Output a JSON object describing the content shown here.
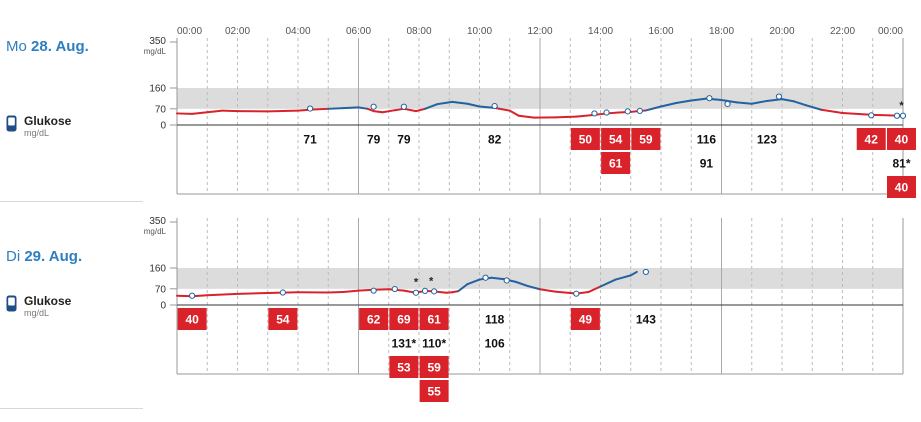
{
  "time_labels": [
    "00:00",
    "02:00",
    "04:00",
    "06:00",
    "08:00",
    "10:00",
    "12:00",
    "14:00",
    "16:00",
    "18:00",
    "20:00",
    "22:00",
    "00:00"
  ],
  "y_tick_labels": [
    "350",
    "160",
    "70",
    "0"
  ],
  "y_unit": "mg/dL",
  "legend": {
    "name": "Glukose",
    "unit": "mg/dL"
  },
  "colors": {
    "low": "#d9222a",
    "in_range": "#2362a0",
    "target_band": "#dcdcdc",
    "date": "#2d7fc1"
  },
  "icons": {
    "glucose": "glucose-meter-icon"
  },
  "days": [
    {
      "weekday": "Mo",
      "date": "28. Aug.",
      "asterisks": [
        {
          "t": 23.95,
          "v": 40
        }
      ],
      "readings": [
        {
          "t": 4.4,
          "row": 0,
          "label": "71",
          "v": 71,
          "low": false
        },
        {
          "t": 6.5,
          "row": 0,
          "label": "79",
          "v": 79,
          "low": false
        },
        {
          "t": 7.5,
          "row": 0,
          "label": "79",
          "v": 79,
          "low": false
        },
        {
          "t": 10.5,
          "row": 0,
          "label": "82",
          "v": 82,
          "low": false
        },
        {
          "t": 13.5,
          "row": 0,
          "label": "50",
          "v": 50,
          "low": true
        },
        {
          "t": 14.5,
          "row": 0,
          "label": "54",
          "v": 54,
          "low": true
        },
        {
          "t": 15.5,
          "row": 0,
          "label": "59",
          "v": 59,
          "low": true
        },
        {
          "t": 14.5,
          "row": 1,
          "label": "61",
          "v": 61,
          "low": true
        },
        {
          "t": 17.5,
          "row": 0,
          "label": "116",
          "v": 116,
          "low": false
        },
        {
          "t": 17.5,
          "row": 1,
          "label": "91",
          "v": 91,
          "low": false
        },
        {
          "t": 19.5,
          "row": 0,
          "label": "123",
          "v": 123,
          "low": false
        },
        {
          "t": 22.95,
          "row": 0,
          "label": "42",
          "v": 42,
          "low": true
        },
        {
          "t": 23.95,
          "row": 0,
          "label": "40",
          "v": 40,
          "low": true
        },
        {
          "t": 23.95,
          "row": 1,
          "label": "81*",
          "v": 81,
          "low": false
        },
        {
          "t": 23.95,
          "row": 2,
          "label": "40",
          "v": 40,
          "low": true
        }
      ],
      "curve": [
        [
          0,
          50
        ],
        [
          0.5,
          48
        ],
        [
          1,
          55
        ],
        [
          1.5,
          62
        ],
        [
          2,
          60
        ],
        [
          3,
          59
        ],
        [
          4,
          62
        ],
        [
          4.5,
          67
        ],
        [
          5,
          70
        ],
        [
          5.5,
          73
        ],
        [
          6,
          76
        ],
        [
          6.3,
          70
        ],
        [
          6.5,
          60
        ],
        [
          6.8,
          55
        ],
        [
          7.2,
          64
        ],
        [
          7.5,
          70
        ],
        [
          7.9,
          60
        ],
        [
          8.2,
          70
        ],
        [
          8.6,
          90
        ],
        [
          9.1,
          100
        ],
        [
          9.6,
          92
        ],
        [
          10,
          80
        ],
        [
          10.5,
          74
        ],
        [
          11,
          62
        ],
        [
          11.3,
          40
        ],
        [
          11.8,
          32
        ],
        [
          12.5,
          33
        ],
        [
          13.2,
          36
        ],
        [
          13.8,
          44
        ],
        [
          14.2,
          50
        ],
        [
          14.6,
          54
        ],
        [
          15,
          57
        ],
        [
          15.5,
          63
        ],
        [
          16,
          80
        ],
        [
          16.5,
          95
        ],
        [
          17,
          106
        ],
        [
          17.5,
          114
        ],
        [
          18,
          108
        ],
        [
          18.5,
          98
        ],
        [
          19,
          92
        ],
        [
          19.5,
          104
        ],
        [
          20,
          112
        ],
        [
          20.4,
          102
        ],
        [
          20.8,
          85
        ],
        [
          21.3,
          66
        ],
        [
          22,
          52
        ],
        [
          23,
          44
        ],
        [
          23.9,
          40
        ],
        [
          24,
          44
        ]
      ],
      "points": [
        [
          4.4,
          71
        ],
        [
          6.5,
          79
        ],
        [
          7.5,
          79
        ],
        [
          10.5,
          82
        ],
        [
          13.8,
          50
        ],
        [
          14.2,
          54
        ],
        [
          14.9,
          59
        ],
        [
          15.3,
          61
        ],
        [
          17.6,
          116
        ],
        [
          18.2,
          91
        ],
        [
          19.9,
          123
        ],
        [
          22.95,
          42
        ],
        [
          23.8,
          40
        ],
        [
          24.0,
          40
        ]
      ]
    },
    {
      "weekday": "Di",
      "date": "29. Aug.",
      "asterisks": [
        {
          "t": 7.9,
          "v": 53
        },
        {
          "t": 8.4,
          "v": 59
        }
      ],
      "readings": [
        {
          "t": 0.5,
          "row": 0,
          "label": "40",
          "v": 40,
          "low": true
        },
        {
          "t": 3.5,
          "row": 0,
          "label": "54",
          "v": 54,
          "low": true
        },
        {
          "t": 6.5,
          "row": 0,
          "label": "62",
          "v": 62,
          "low": true
        },
        {
          "t": 7.5,
          "row": 0,
          "label": "69",
          "v": 69,
          "low": true
        },
        {
          "t": 8.5,
          "row": 0,
          "label": "61",
          "v": 61,
          "low": true
        },
        {
          "t": 7.5,
          "row": 1,
          "label": "131*",
          "v": 131,
          "low": false
        },
        {
          "t": 8.5,
          "row": 1,
          "label": "110*",
          "v": 110,
          "low": false
        },
        {
          "t": 7.5,
          "row": 2,
          "label": "53",
          "v": 53,
          "low": true
        },
        {
          "t": 8.5,
          "row": 2,
          "label": "59",
          "v": 59,
          "low": true
        },
        {
          "t": 8.5,
          "row": 3,
          "label": "55",
          "v": 55,
          "low": true
        },
        {
          "t": 10.5,
          "row": 0,
          "label": "118",
          "v": 118,
          "low": false
        },
        {
          "t": 10.5,
          "row": 1,
          "label": "106",
          "v": 106,
          "low": false
        },
        {
          "t": 13.5,
          "row": 0,
          "label": "49",
          "v": 49,
          "low": true
        },
        {
          "t": 15.5,
          "row": 0,
          "label": "143",
          "v": 143,
          "low": false
        }
      ],
      "curve": [
        [
          0,
          40
        ],
        [
          0.5,
          38
        ],
        [
          1,
          42
        ],
        [
          2,
          48
        ],
        [
          3,
          52
        ],
        [
          4,
          55
        ],
        [
          5,
          54
        ],
        [
          5.5,
          56
        ],
        [
          6,
          62
        ],
        [
          6.5,
          66
        ],
        [
          7,
          68
        ],
        [
          7.5,
          62
        ],
        [
          7.9,
          53
        ],
        [
          8.2,
          61
        ],
        [
          8.5,
          59
        ],
        [
          8.9,
          53
        ],
        [
          9.1,
          55
        ],
        [
          9.3,
          60
        ],
        [
          9.6,
          90
        ],
        [
          10,
          110
        ],
        [
          10.4,
          118
        ],
        [
          10.8,
          112
        ],
        [
          11.2,
          100
        ],
        [
          11.6,
          82
        ],
        [
          12,
          68
        ],
        [
          12.5,
          58
        ],
        [
          13,
          52
        ],
        [
          13.2,
          49
        ],
        [
          13.6,
          56
        ],
        [
          14,
          80
        ],
        [
          14.5,
          110
        ],
        [
          15,
          128
        ],
        [
          15.2,
          143
        ]
      ],
      "points": [
        [
          0.5,
          40
        ],
        [
          3.5,
          54
        ],
        [
          6.5,
          62
        ],
        [
          7.2,
          69
        ],
        [
          7.9,
          53
        ],
        [
          8.2,
          61
        ],
        [
          8.5,
          59
        ],
        [
          10.2,
          118
        ],
        [
          10.9,
          106
        ],
        [
          13.2,
          49
        ],
        [
          15.5,
          143
        ]
      ]
    }
  ]
}
